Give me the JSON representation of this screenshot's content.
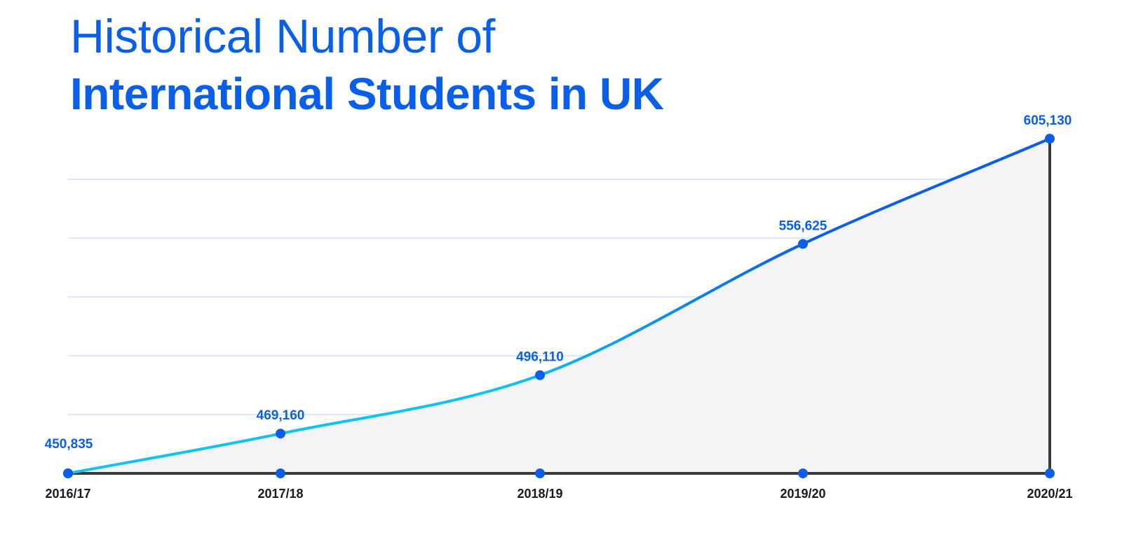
{
  "title": {
    "line1": "Historical Number of",
    "line2": "International Students in UK"
  },
  "colors": {
    "title": "#0a5fea",
    "line_start": "#12c2f0",
    "line_end": "#0a5fea",
    "area_fill": "#f4f4f6",
    "grid": "#dce9fb",
    "axis": "#3a3a3a"
  },
  "chart_data": {
    "type": "line",
    "title": "Historical Number of International Students in UK",
    "categories": [
      "2016/17",
      "2017/18",
      "2018/19",
      "2019/20",
      "2020/21"
    ],
    "series": [
      {
        "values": [
          450835,
          469160,
          496110,
          556625,
          605130
        ],
        "labels": [
          "450,835",
          "469,160",
          "496,110",
          "556,625",
          "605,130"
        ]
      }
    ],
    "xlabel": "",
    "ylabel": "",
    "grid": true,
    "area_fill": true
  }
}
